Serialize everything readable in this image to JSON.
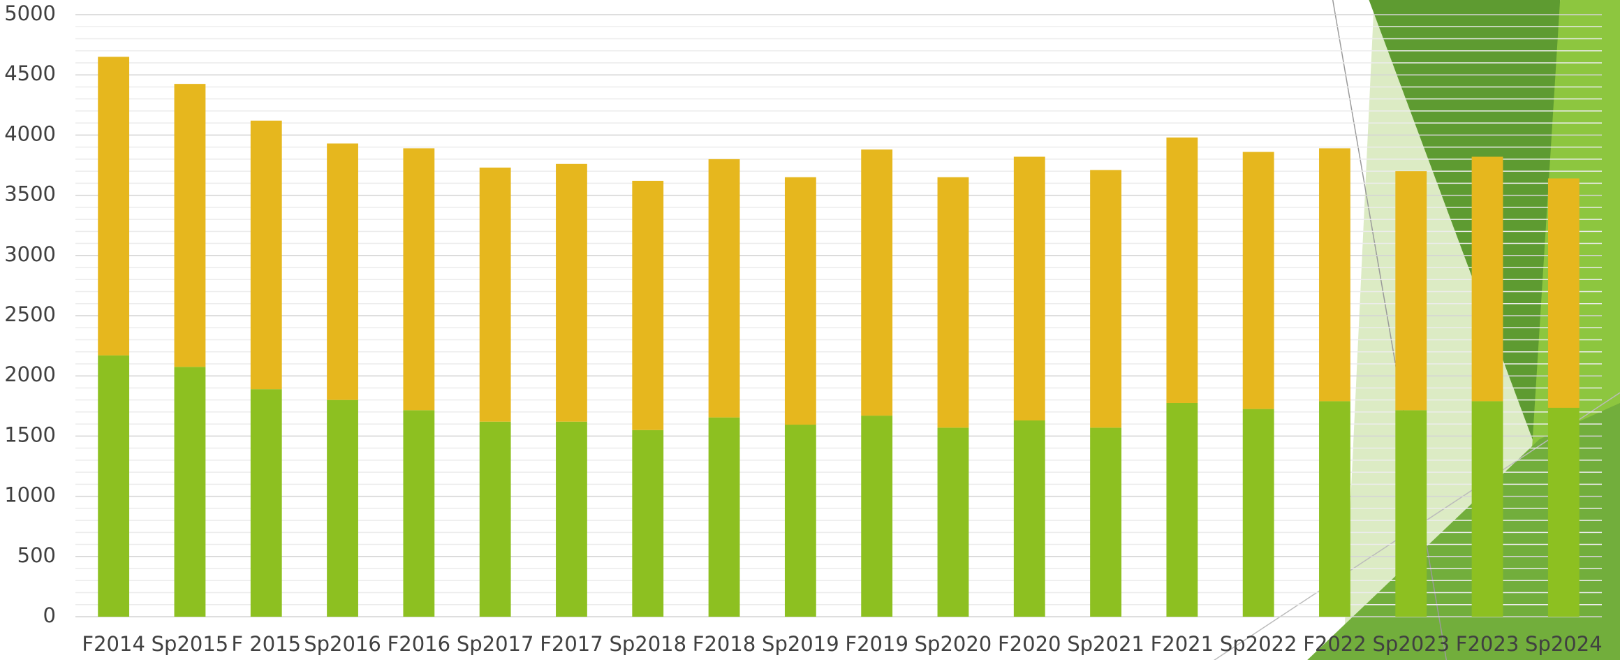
{
  "chart_data": {
    "type": "stacked_bar",
    "categories": [
      "F2014",
      "Sp2015",
      "F 2015",
      "Sp2016",
      "F2016",
      "Sp2017",
      "F2017",
      "Sp2018",
      "F2018",
      "Sp2019",
      "F2019",
      "Sp2020",
      "F2020",
      "Sp2021",
      "F2021",
      "Sp2022",
      "F2022",
      "Sp2023",
      "F2023",
      "Sp2024"
    ],
    "series": [
      {
        "color": "#8dc021",
        "values": [
          2170,
          2075,
          1890,
          1800,
          1715,
          1620,
          1620,
          1550,
          1655,
          1595,
          1670,
          1570,
          1630,
          1570,
          1775,
          1725,
          1790,
          1715,
          1790,
          1735
        ]
      },
      {
        "color": "#e6b71e",
        "values": [
          2480,
          2350,
          2230,
          2130,
          2175,
          2110,
          2140,
          2070,
          2145,
          2055,
          2210,
          2080,
          2190,
          2140,
          2205,
          2135,
          2100,
          1985,
          2030,
          1905
        ]
      }
    ],
    "ylim": [
      0,
      5000
    ],
    "yticks": [
      0,
      500,
      1000,
      1500,
      2000,
      2500,
      3000,
      3500,
      4000,
      4500,
      5000
    ],
    "yticks_minor": [
      100,
      200,
      300,
      400,
      600,
      700,
      800,
      900,
      1100,
      1200,
      1300,
      1400,
      1600,
      1700,
      1800,
      1900,
      2100,
      2200,
      2300,
      2400,
      2600,
      2700,
      2800,
      2900,
      3100,
      3200,
      3300,
      3400,
      3600,
      3700,
      3800,
      3900,
      4100,
      4200,
      4300,
      4400,
      4600,
      4700,
      4800,
      4900
    ],
    "grid": true
  }
}
